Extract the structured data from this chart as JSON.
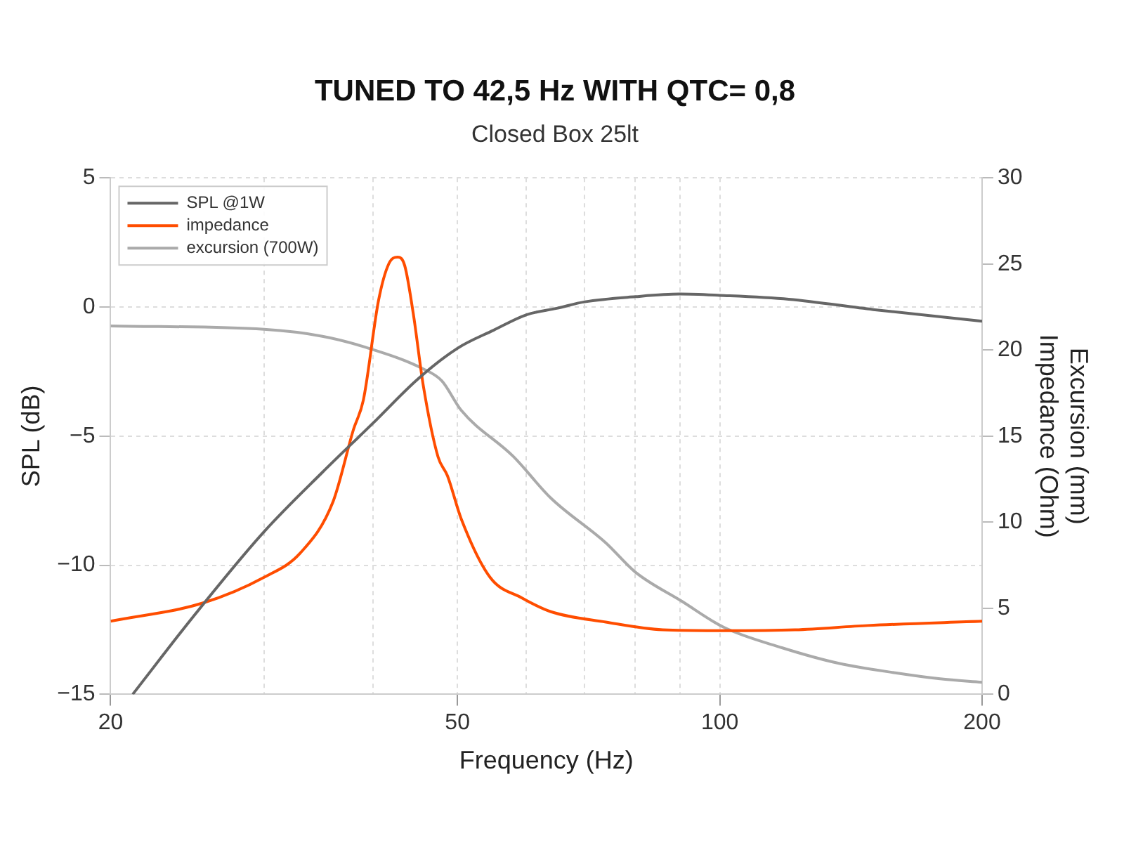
{
  "chart_data": {
    "type": "line",
    "title": "TUNED TO 42,5 Hz WITH QTC= 0,8",
    "subtitle": "Closed Box 25lt",
    "xlabel": "Frequency (Hz)",
    "ylabel": "SPL (dB)",
    "y2label": "Excursion (mm)\nImpedance (Ohm)",
    "log": "x",
    "grid": true,
    "legend": "top left",
    "xlim": [
      20,
      200
    ],
    "xticks": [
      20,
      {
        "value": 30,
        "label": null
      },
      {
        "value": 40,
        "label": null
      },
      50,
      {
        "value": 60,
        "label": null
      },
      {
        "value": 70,
        "label": null
      },
      {
        "value": 80,
        "label": null
      },
      {
        "value": 90,
        "label": null
      },
      100,
      200
    ],
    "ylim": [
      -15,
      5
    ],
    "yticks": [
      {
        "value": -15,
        "label": "−15"
      },
      {
        "value": -10,
        "label": "−10"
      },
      {
        "value": -5,
        "label": "−5"
      },
      0,
      5
    ],
    "y2lim": [
      0,
      30
    ],
    "y2ticks": [
      0,
      5,
      10,
      15,
      20,
      25,
      30
    ],
    "series": [
      {
        "name": "SPL @1W",
        "color": "#666666",
        "x": [
          21.2,
          25,
          30,
          35,
          40,
          45,
          50,
          55,
          60,
          65,
          70,
          80,
          90,
          100,
          120,
          150,
          200
        ],
        "values": [
          -15,
          -11.9,
          -8.7,
          -6.4,
          -4.5,
          -2.8,
          -1.6,
          -0.9,
          -0.3,
          -0.05,
          0.2,
          0.4,
          0.5,
          0.45,
          0.3,
          -0.1,
          -0.55
        ]
      },
      {
        "name": "impedance",
        "color": "#ff4d00",
        "axis": "y2",
        "x": [
          20,
          25.5,
          30,
          33,
          36,
          38,
          39,
          40.6,
          41.7,
          42.7,
          43.5,
          44.5,
          45.7,
          47.5,
          48.7,
          50.5,
          54.5,
          59.3,
          64,
          74,
          86,
          101,
          122,
          148,
          200
        ],
        "values": [
          4.25,
          5.3,
          6.8,
          8.2,
          11.2,
          15.4,
          17.1,
          22.9,
          25,
          25.4,
          24.9,
          22.1,
          17.9,
          13.8,
          12.7,
          10.2,
          6.8,
          5.6,
          4.8,
          4.2,
          3.75,
          3.7,
          3.75,
          4,
          4.25
        ]
      },
      {
        "name": "excursion (700W)",
        "color": "#aaaaaa",
        "axis": "y2",
        "x": [
          20,
          30,
          35,
          39,
          45.7,
          48,
          50.5,
          58,
          64,
          74,
          80,
          90.5,
          101,
          118,
          137,
          159,
          179,
          200
        ],
        "values": [
          21.4,
          21.2,
          20.8,
          20.2,
          18.9,
          18.2,
          16.5,
          13.8,
          11.4,
          8.8,
          7.1,
          5.4,
          3.9,
          2.7,
          1.8,
          1.25,
          0.9,
          0.7
        ]
      }
    ]
  }
}
